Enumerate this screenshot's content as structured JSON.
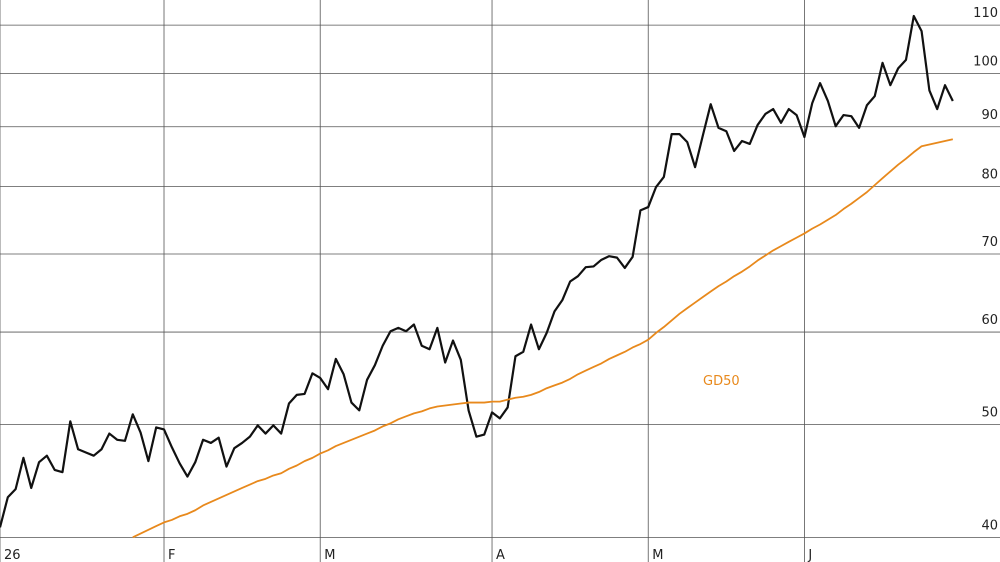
{
  "chart_data": {
    "type": "line",
    "yscale": "log",
    "grid": true,
    "ylim": [
      38.1,
      115.6
    ],
    "yticks": [
      40,
      50,
      60,
      70,
      80,
      90,
      100,
      110
    ],
    "categories": [
      "26",
      null,
      null,
      null,
      null,
      null,
      null,
      null,
      null,
      null,
      null,
      null,
      null,
      null,
      null,
      null,
      null,
      null,
      null,
      null,
      null,
      "F",
      null,
      null,
      null,
      null,
      null,
      null,
      null,
      null,
      null,
      null,
      null,
      null,
      null,
      null,
      null,
      null,
      null,
      null,
      null,
      "M",
      null,
      null,
      null,
      null,
      null,
      null,
      null,
      null,
      null,
      null,
      null,
      null,
      null,
      null,
      null,
      null,
      null,
      null,
      null,
      null,
      null,
      "A",
      null,
      null,
      null,
      null,
      null,
      null,
      null,
      null,
      null,
      null,
      null,
      null,
      null,
      null,
      null,
      null,
      null,
      null,
      null,
      "M",
      null,
      null,
      null,
      null,
      null,
      null,
      null,
      null,
      null,
      null,
      null,
      null,
      null,
      null,
      null,
      null,
      null,
      null,
      null,
      "J",
      null,
      null,
      null,
      null,
      null,
      null,
      null,
      null,
      null,
      null,
      null,
      null,
      null,
      null,
      null,
      null,
      null,
      null,
      null
    ],
    "series": [
      {
        "color": "#111111",
        "values": [
          40.8,
          43.3,
          44.0,
          46.8,
          44.1,
          46.4,
          47.0,
          45.7,
          45.5,
          50.3,
          47.6,
          47.3,
          47.0,
          47.6,
          49.1,
          48.5,
          48.4,
          51.0,
          49.2,
          46.5,
          49.7,
          49.5,
          47.8,
          46.3,
          45.1,
          46.4,
          48.5,
          48.2,
          48.7,
          46.0,
          47.7,
          48.2,
          48.8,
          49.9,
          49.1,
          49.9,
          49.1,
          52.1,
          53.0,
          53.1,
          55.3,
          54.8,
          53.6,
          56.9,
          55.2,
          52.2,
          51.4,
          54.6,
          56.2,
          58.4,
          60.1,
          60.5,
          60.1,
          60.9,
          58.4,
          58.0,
          60.5,
          56.5,
          59.0,
          56.8,
          51.4,
          48.8,
          49.0,
          51.2,
          50.6,
          51.7,
          57.2,
          57.7,
          60.9,
          58.0,
          59.9,
          62.5,
          63.9,
          66.3,
          67.0,
          68.2,
          68.3,
          69.2,
          69.7,
          69.5,
          68.1,
          69.6,
          76.3,
          76.8,
          79.9,
          81.5,
          88.7,
          88.7,
          87.3,
          83.1,
          88.5,
          94.1,
          89.8,
          89.2,
          85.8,
          87.5,
          87.0,
          90.3,
          92.3,
          93.2,
          90.7,
          93.2,
          92.1,
          88.2,
          94.3,
          98.1,
          94.7,
          90.1,
          92.1,
          91.9,
          89.8,
          93.9,
          95.6,
          102.1,
          97.7,
          101.0,
          102.7,
          112.0,
          108.7,
          96.7,
          93.2,
          97.7,
          94.7
        ]
      },
      {
        "name": "GD50",
        "color": "#e8891c",
        "values": [
          null,
          null,
          null,
          null,
          null,
          null,
          null,
          null,
          null,
          null,
          null,
          null,
          null,
          null,
          null,
          null,
          null,
          40.0,
          40.3,
          40.6,
          40.9,
          41.2,
          41.4,
          41.7,
          41.9,
          42.2,
          42.6,
          42.9,
          43.2,
          43.5,
          43.8,
          44.1,
          44.4,
          44.7,
          44.9,
          45.2,
          45.4,
          45.8,
          46.1,
          46.5,
          46.8,
          47.2,
          47.5,
          47.9,
          48.2,
          48.5,
          48.8,
          49.1,
          49.4,
          49.8,
          50.1,
          50.5,
          50.8,
          51.1,
          51.3,
          51.6,
          51.8,
          51.9,
          52.0,
          52.1,
          52.2,
          52.2,
          52.2,
          52.3,
          52.3,
          52.5,
          52.7,
          52.8,
          53.0,
          53.3,
          53.7,
          54.0,
          54.3,
          54.7,
          55.2,
          55.6,
          56.0,
          56.4,
          56.9,
          57.3,
          57.7,
          58.2,
          58.6,
          59.1,
          59.9,
          60.6,
          61.4,
          62.2,
          62.9,
          63.6,
          64.3,
          65.0,
          65.7,
          66.3,
          67.0,
          67.6,
          68.3,
          69.1,
          69.8,
          70.5,
          71.1,
          71.7,
          72.3,
          72.9,
          73.6,
          74.2,
          74.9,
          75.6,
          76.5,
          77.3,
          78.2,
          79.1,
          80.2,
          81.3,
          82.4,
          83.5,
          84.5,
          85.6,
          86.6,
          86.9,
          87.2,
          87.5,
          87.8
        ]
      }
    ]
  }
}
